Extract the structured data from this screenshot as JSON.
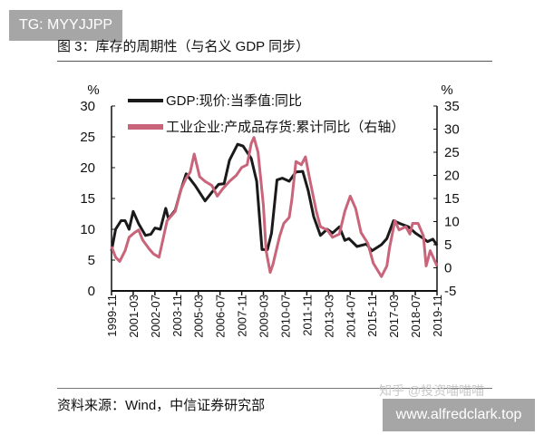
{
  "watermark_top": "TG: MYYJJPP",
  "watermark_bottom": "www.alfredclark.top",
  "watermark_zhihu": "知乎 @投资喵喵喵",
  "figure_title": "图 3：库存的周期性（与名义 GDP 同步）",
  "source": "资料来源：Wind，中信证券研究部",
  "colors": {
    "gdp": "#1a1a1a",
    "inventory": "#c9647a"
  },
  "chart_data": {
    "type": "line",
    "title": "",
    "x_tick_labels": [
      "1999-11",
      "2001-03",
      "2002-07",
      "2003-11",
      "2005-03",
      "2006-07",
      "2007-11",
      "2009-03",
      "2010-07",
      "2011-11",
      "2013-03",
      "2014-07",
      "2015-11",
      "2017-03",
      "2018-07",
      "2019-11"
    ],
    "xlim": [
      "1999-11",
      "2019-11"
    ],
    "y_left": {
      "unit": "%",
      "ylim": [
        0,
        30
      ],
      "ticks": [
        0,
        5,
        10,
        15,
        20,
        25,
        30
      ]
    },
    "y_right": {
      "unit": "%",
      "ylim": [
        -5,
        35
      ],
      "ticks": [
        -5,
        0,
        5,
        10,
        15,
        20,
        25,
        30,
        35
      ]
    },
    "legend_position": "top-left",
    "grid": false,
    "series": [
      {
        "name": "GDP:现价:当季值:同比",
        "axis": "left",
        "color": "#1a1a1a",
        "x": [
          "1999-11",
          "2000-02",
          "2000-06",
          "2000-09",
          "2000-12",
          "2001-03",
          "2001-07",
          "2001-12",
          "2002-04",
          "2002-07",
          "2002-11",
          "2003-03",
          "2003-05",
          "2003-10",
          "2004-02",
          "2004-06",
          "2005-01",
          "2005-08",
          "2006-01",
          "2006-06",
          "2006-10",
          "2007-02",
          "2007-08",
          "2007-12",
          "2008-06",
          "2008-10",
          "2009-02",
          "2009-06",
          "2009-09",
          "2010-01",
          "2010-05",
          "2010-10",
          "2011-03",
          "2011-08",
          "2011-12",
          "2012-04",
          "2012-09",
          "2013-02",
          "2013-06",
          "2013-11",
          "2014-03",
          "2014-06",
          "2014-12",
          "2015-07",
          "2015-11",
          "2016-06",
          "2016-10",
          "2017-03",
          "2017-08",
          "2018-02",
          "2018-07",
          "2019-01",
          "2019-04",
          "2019-08",
          "2019-11"
        ],
        "values": [
          6.5,
          10,
          11.4,
          11.4,
          10,
          12.9,
          10.9,
          9,
          9.2,
          10.2,
          10,
          13.4,
          11.7,
          13.1,
          16.3,
          19,
          17,
          14.6,
          16,
          17.3,
          17.4,
          21.2,
          23.8,
          23.5,
          21.5,
          17.8,
          6.7,
          6.7,
          9.4,
          18,
          18.3,
          17.8,
          19.3,
          19.4,
          16.3,
          12.1,
          9,
          10,
          9.4,
          10.4,
          8.2,
          8.5,
          7.2,
          7.6,
          6.5,
          7.5,
          8.5,
          11.4,
          10.9,
          10.4,
          9.4,
          8.5,
          8,
          8.4,
          7.4
        ]
      },
      {
        "name": "工业企业:产成品存货:累计同比（右轴）",
        "axis": "right",
        "color": "#c9647a",
        "x": [
          "1999-11",
          "2000-02",
          "2000-05",
          "2000-09",
          "2000-12",
          "2001-04",
          "2001-07",
          "2001-10",
          "2002-03",
          "2002-06",
          "2002-10",
          "2003-01",
          "2003-04",
          "2003-10",
          "2004-02",
          "2004-06",
          "2004-09",
          "2004-12",
          "2005-04",
          "2005-08",
          "2006-01",
          "2006-05",
          "2006-09",
          "2007-02",
          "2007-07",
          "2007-11",
          "2008-03",
          "2008-06",
          "2008-08",
          "2008-11",
          "2009-03",
          "2009-05",
          "2009-08",
          "2009-10",
          "2010-03",
          "2010-06",
          "2010-10",
          "2010-12",
          "2011-03",
          "2011-07",
          "2011-10",
          "2012-01",
          "2012-06",
          "2012-09",
          "2013-02",
          "2013-06",
          "2013-11",
          "2014-03",
          "2014-07",
          "2014-11",
          "2015-03",
          "2015-08",
          "2015-12",
          "2016-06",
          "2016-10",
          "2016-12",
          "2017-04",
          "2017-07",
          "2017-12",
          "2018-03",
          "2018-05",
          "2018-09",
          "2019-01",
          "2019-03",
          "2019-06",
          "2019-11"
        ],
        "values": [
          4.6,
          2.3,
          1.4,
          3.7,
          6.6,
          7.6,
          8.2,
          6,
          4,
          3,
          2.3,
          6.2,
          10.2,
          12.2,
          16.8,
          19.4,
          20.7,
          24.6,
          19.7,
          18.7,
          17.8,
          15.5,
          17.1,
          18.7,
          20,
          21.7,
          22.3,
          26.9,
          28.2,
          25,
          13.5,
          3.7,
          -1.0,
          0.7,
          6.9,
          9.6,
          10.9,
          14.8,
          23,
          22.3,
          24,
          19.4,
          12.2,
          8.9,
          8.2,
          6.6,
          7.3,
          12.2,
          15.5,
          12.8,
          7.6,
          5.3,
          1,
          -1.9,
          0.4,
          4.3,
          10.2,
          8.2,
          8.9,
          7.3,
          9.6,
          9.6,
          6.9,
          0.4,
          3.7,
          0.4
        ]
      }
    ]
  }
}
